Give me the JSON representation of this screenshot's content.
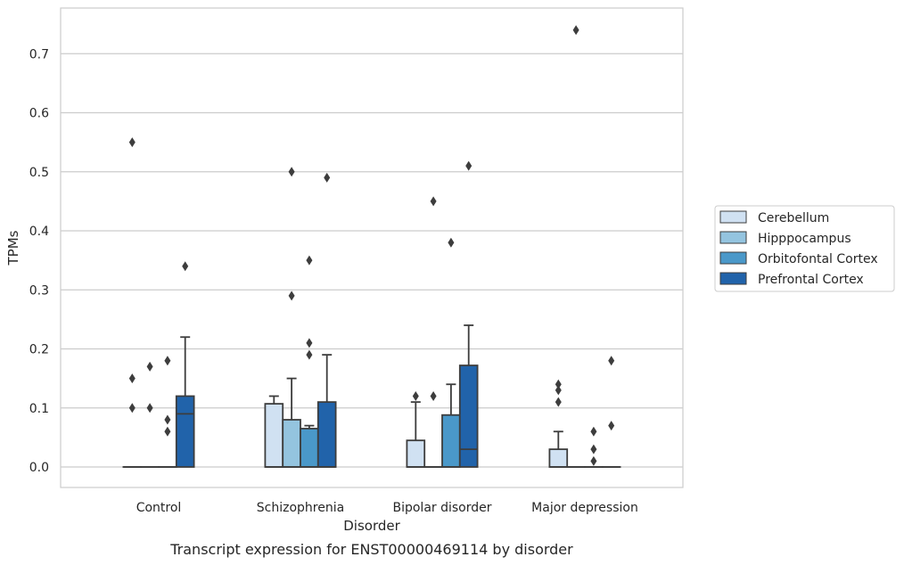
{
  "chart_data": {
    "type": "box",
    "title": "",
    "caption": "Transcript expression for ENST00000469114 by disorder",
    "xlabel": "Disorder",
    "ylabel": "TPMs",
    "ylim": [
      -0.037,
      0.78
    ],
    "yticks": [
      "0.0",
      "0.1",
      "0.2",
      "0.3",
      "0.4",
      "0.5",
      "0.6",
      "0.7"
    ],
    "categories": [
      "Control",
      "Schizophrenia",
      "Bipolar disorder",
      "Major depression"
    ],
    "grid": "horizontal",
    "legend_position": "right",
    "series": [
      {
        "name": "Cerebellum",
        "color": "#d0e1f2",
        "boxes": [
          {
            "q1": 0.0,
            "median": 0.0,
            "q3": 0.0,
            "whisker_low": 0.0,
            "whisker_high": 0.0,
            "outliers": [
              0.55,
              0.15,
              0.1
            ]
          },
          {
            "q1": 0.0,
            "median": 0.0,
            "q3": 0.107,
            "whisker_low": 0.0,
            "whisker_high": 0.12,
            "outliers": []
          },
          {
            "q1": 0.0,
            "median": 0.0,
            "q3": 0.045,
            "whisker_low": 0.0,
            "whisker_high": 0.11,
            "outliers": [
              0.12
            ]
          },
          {
            "q1": 0.0,
            "median": 0.0,
            "q3": 0.03,
            "whisker_low": 0.0,
            "whisker_high": 0.06,
            "outliers": [
              0.14,
              0.13,
              0.11
            ]
          }
        ]
      },
      {
        "name": "Hipppocampus",
        "color": "#94c4df",
        "boxes": [
          {
            "q1": 0.0,
            "median": 0.0,
            "q3": 0.0,
            "whisker_low": 0.0,
            "whisker_high": 0.0,
            "outliers": [
              0.17,
              0.1
            ]
          },
          {
            "q1": 0.0,
            "median": 0.0,
            "q3": 0.08,
            "whisker_low": 0.0,
            "whisker_high": 0.15,
            "outliers": [
              0.5,
              0.29
            ]
          },
          {
            "q1": 0.0,
            "median": 0.0,
            "q3": 0.0,
            "whisker_low": 0.0,
            "whisker_high": 0.0,
            "outliers": [
              0.12,
              0.45
            ]
          },
          {
            "q1": 0.0,
            "median": 0.0,
            "q3": 0.0,
            "whisker_low": 0.0,
            "whisker_high": 0.0,
            "outliers": [
              0.74
            ]
          }
        ]
      },
      {
        "name": "Orbitofontal Cortex",
        "color": "#4a98c9",
        "boxes": [
          {
            "q1": 0.0,
            "median": 0.0,
            "q3": 0.0,
            "whisker_low": 0.0,
            "whisker_high": 0.0,
            "outliers": [
              0.18,
              0.08,
              0.06
            ]
          },
          {
            "q1": 0.0,
            "median": 0.0,
            "q3": 0.065,
            "whisker_low": 0.0,
            "whisker_high": 0.07,
            "outliers": [
              0.35,
              0.21,
              0.19
            ]
          },
          {
            "q1": 0.0,
            "median": 0.0,
            "q3": 0.088,
            "whisker_low": 0.0,
            "whisker_high": 0.14,
            "outliers": [
              0.38
            ]
          },
          {
            "q1": 0.0,
            "median": 0.0,
            "q3": 0.0,
            "whisker_low": 0.0,
            "whisker_high": 0.0,
            "outliers": [
              0.06,
              0.03,
              0.01
            ]
          }
        ]
      },
      {
        "name": "Prefrontal Cortex",
        "color": "#2163aa",
        "boxes": [
          {
            "q1": 0.0,
            "median": 0.09,
            "q3": 0.12,
            "whisker_low": 0.0,
            "whisker_high": 0.22,
            "outliers": [
              0.34
            ]
          },
          {
            "q1": 0.0,
            "median": 0.0,
            "q3": 0.11,
            "whisker_low": 0.0,
            "whisker_high": 0.19,
            "outliers": [
              0.49
            ]
          },
          {
            "q1": 0.0,
            "median": 0.03,
            "q3": 0.172,
            "whisker_low": 0.0,
            "whisker_high": 0.24,
            "outliers": [
              0.51
            ]
          },
          {
            "q1": 0.0,
            "median": 0.0,
            "q3": 0.0,
            "whisker_low": 0.0,
            "whisker_high": 0.0,
            "outliers": [
              0.18,
              0.07
            ]
          }
        ]
      }
    ]
  }
}
